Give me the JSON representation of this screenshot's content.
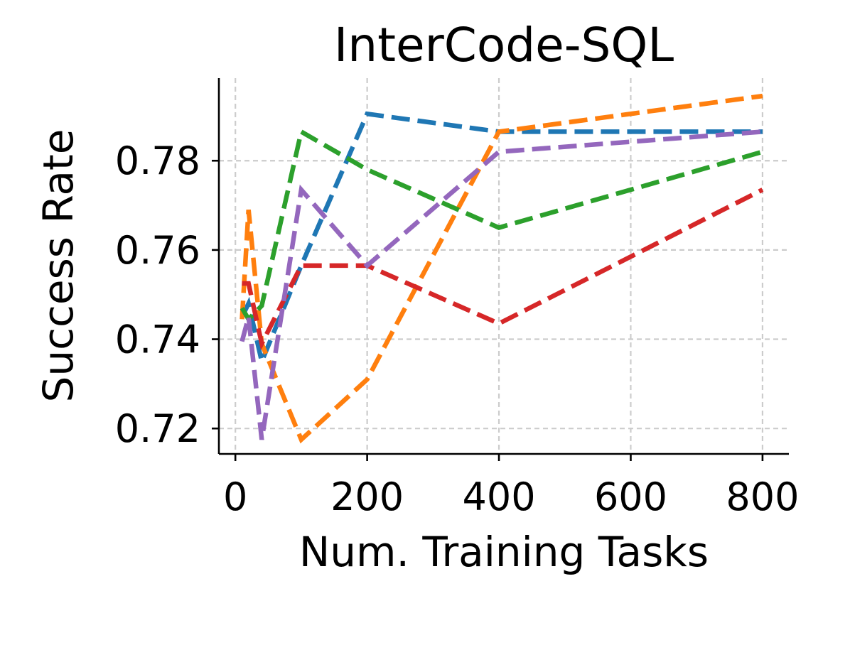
{
  "chart_data": {
    "type": "line",
    "title": "InterCode-SQL",
    "xlabel": "Num. Training Tasks",
    "ylabel": "Success Rate",
    "xlim": [
      -25,
      840
    ],
    "ylim": [
      0.7143,
      0.7985
    ],
    "xticks": [
      0,
      200,
      400,
      600,
      800
    ],
    "xtick_labels": [
      "0",
      "200",
      "400",
      "600",
      "800"
    ],
    "yticks": [
      0.72,
      0.74,
      0.76,
      0.78
    ],
    "ytick_labels": [
      "0.72",
      "0.74",
      "0.76",
      "0.78"
    ],
    "grid": true,
    "legend": "none",
    "series": [
      {
        "color": "#1f77b4",
        "x": [
          10,
          20,
          40,
          100,
          200,
          400,
          800
        ],
        "y": [
          0.745,
          0.748,
          0.735,
          0.7565,
          0.7905,
          0.7865,
          0.7865
        ]
      },
      {
        "color": "#ff7f0e",
        "x": [
          10,
          20,
          40,
          100,
          200,
          400,
          800
        ],
        "y": [
          0.7445,
          0.769,
          0.739,
          0.7175,
          0.731,
          0.7865,
          0.7945
        ]
      },
      {
        "color": "#2ca02c",
        "x": [
          10,
          20,
          40,
          100,
          200,
          400,
          800
        ],
        "y": [
          0.747,
          0.7445,
          0.7475,
          0.7865,
          0.778,
          0.765,
          0.782
        ]
      },
      {
        "color": "#d62728",
        "x": [
          10,
          20,
          40,
          100,
          200,
          400,
          800
        ],
        "y": [
          0.7525,
          0.7525,
          0.739,
          0.7565,
          0.7565,
          0.7435,
          0.7735
        ]
      },
      {
        "color": "#9467bd",
        "x": [
          10,
          20,
          40,
          100,
          200,
          400,
          800
        ],
        "y": [
          0.7395,
          0.745,
          0.7175,
          0.7735,
          0.7565,
          0.782,
          0.7865
        ]
      }
    ]
  }
}
